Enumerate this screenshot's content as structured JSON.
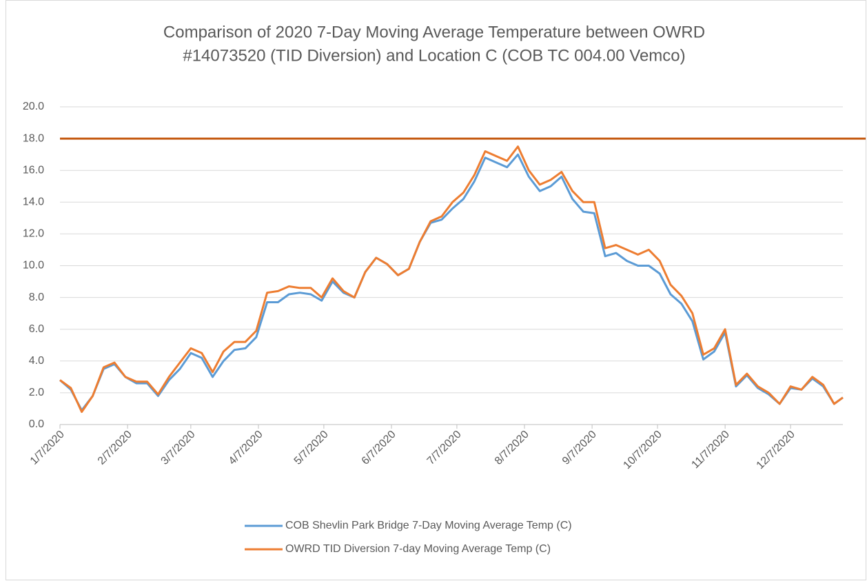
{
  "chart_data": {
    "type": "line",
    "title": "Comparison of 2020 7-Day Moving Average Temperature between OWRD",
    "subtitle": "#14073520 (TID Diversion) and Location C (COB TC 004.00 Vemco)",
    "x": [
      "1/7/2020",
      "1/12/2020",
      "1/17/2020",
      "1/22/2020",
      "1/27/2020",
      "2/1/2020",
      "2/6/2020",
      "2/11/2020",
      "2/16/2020",
      "2/21/2020",
      "2/26/2020",
      "3/2/2020",
      "3/7/2020",
      "3/12/2020",
      "3/17/2020",
      "3/22/2020",
      "3/27/2020",
      "4/1/2020",
      "4/6/2020",
      "4/11/2020",
      "4/16/2020",
      "4/21/2020",
      "4/26/2020",
      "5/1/2020",
      "5/6/2020",
      "5/11/2020",
      "5/16/2020",
      "5/21/2020",
      "5/26/2020",
      "5/31/2020",
      "6/5/2020",
      "6/10/2020",
      "6/15/2020",
      "6/20/2020",
      "6/25/2020",
      "6/30/2020",
      "7/5/2020",
      "7/10/2020",
      "7/15/2020",
      "7/20/2020",
      "7/25/2020",
      "7/30/2020",
      "8/4/2020",
      "8/9/2020",
      "8/14/2020",
      "8/19/2020",
      "8/24/2020",
      "8/29/2020",
      "9/3/2020",
      "9/8/2020",
      "9/13/2020",
      "9/18/2020",
      "9/23/2020",
      "9/28/2020",
      "10/3/2020",
      "10/8/2020",
      "10/13/2020",
      "10/18/2020",
      "10/23/2020",
      "10/28/2020",
      "11/2/2020",
      "11/7/2020",
      "11/12/2020",
      "11/17/2020",
      "11/22/2020",
      "11/27/2020",
      "12/2/2020",
      "12/7/2020",
      "12/12/2020",
      "12/17/2020",
      "12/22/2020",
      "12/27/2020",
      "12/31/2020"
    ],
    "series": [
      {
        "name": "COB Shevlin Park Bridge 7-Day Moving Average Temp (C)",
        "color": "#5b9bd5",
        "values": [
          2.8,
          2.2,
          0.9,
          1.8,
          3.5,
          3.8,
          3.0,
          2.6,
          2.6,
          1.8,
          2.8,
          3.5,
          4.5,
          4.2,
          3.0,
          4.0,
          4.7,
          4.8,
          5.5,
          7.7,
          7.7,
          8.2,
          8.3,
          8.2,
          7.8,
          9.0,
          8.3,
          8.0,
          9.6,
          10.5,
          10.1,
          9.4,
          9.8,
          11.5,
          12.7,
          12.9,
          13.6,
          14.2,
          15.3,
          16.8,
          16.5,
          16.2,
          17.0,
          15.6,
          14.7,
          15.0,
          15.6,
          14.2,
          13.4,
          13.3,
          10.6,
          10.8,
          10.3,
          10.0,
          10.0,
          9.5,
          8.2,
          7.6,
          6.5,
          4.1,
          4.6,
          5.8,
          2.4,
          3.1,
          2.3,
          1.9,
          1.3,
          2.3,
          2.2,
          2.9,
          2.4,
          1.3,
          1.7
        ]
      },
      {
        "name": "OWRD TID Diversion 7-day Moving Average Temp (C)",
        "color": "#ed7d31",
        "values": [
          2.8,
          2.3,
          0.8,
          1.8,
          3.6,
          3.9,
          3.0,
          2.7,
          2.7,
          1.9,
          3.0,
          3.9,
          4.8,
          4.5,
          3.3,
          4.6,
          5.2,
          5.2,
          5.9,
          8.3,
          8.4,
          8.7,
          8.6,
          8.6,
          8.0,
          9.2,
          8.4,
          8.0,
          9.6,
          10.5,
          10.1,
          9.4,
          9.8,
          11.5,
          12.8,
          13.1,
          14.0,
          14.6,
          15.7,
          17.2,
          16.9,
          16.6,
          17.5,
          16.0,
          15.1,
          15.4,
          15.9,
          14.7,
          14.0,
          14.0,
          11.1,
          11.3,
          11.0,
          10.7,
          11.0,
          10.3,
          8.8,
          8.1,
          7.0,
          4.4,
          4.8,
          6.0,
          2.5,
          3.2,
          2.4,
          2.0,
          1.3,
          2.4,
          2.2,
          3.0,
          2.5,
          1.3,
          1.7
        ]
      }
    ],
    "reference_line": {
      "value": 18,
      "color": "#c55a11"
    },
    "xlim": [
      "1/7/2020",
      "12/31/2020"
    ],
    "xticks": [
      "1/7/2020",
      "2/7/2020",
      "3/7/2020",
      "4/7/2020",
      "5/7/2020",
      "6/7/2020",
      "7/7/2020",
      "8/7/2020",
      "9/7/2020",
      "10/7/2020",
      "11/7/2020",
      "12/7/2020"
    ],
    "ylim": [
      0,
      20
    ],
    "yticks": [
      {
        "value": 0,
        "label": "0.0"
      },
      {
        "value": 2,
        "label": "2.0"
      },
      {
        "value": 4,
        "label": "4.0"
      },
      {
        "value": 6,
        "label": "6.0"
      },
      {
        "value": 8,
        "label": "8.0"
      },
      {
        "value": 10,
        "label": "10.0"
      },
      {
        "value": 12,
        "label": "12.0"
      },
      {
        "value": 14,
        "label": "14.0"
      },
      {
        "value": 16,
        "label": "16.0"
      },
      {
        "value": 18,
        "label": "18.0"
      },
      {
        "value": 20,
        "label": "20.0"
      }
    ],
    "grid": true,
    "legend": "bottom"
  }
}
